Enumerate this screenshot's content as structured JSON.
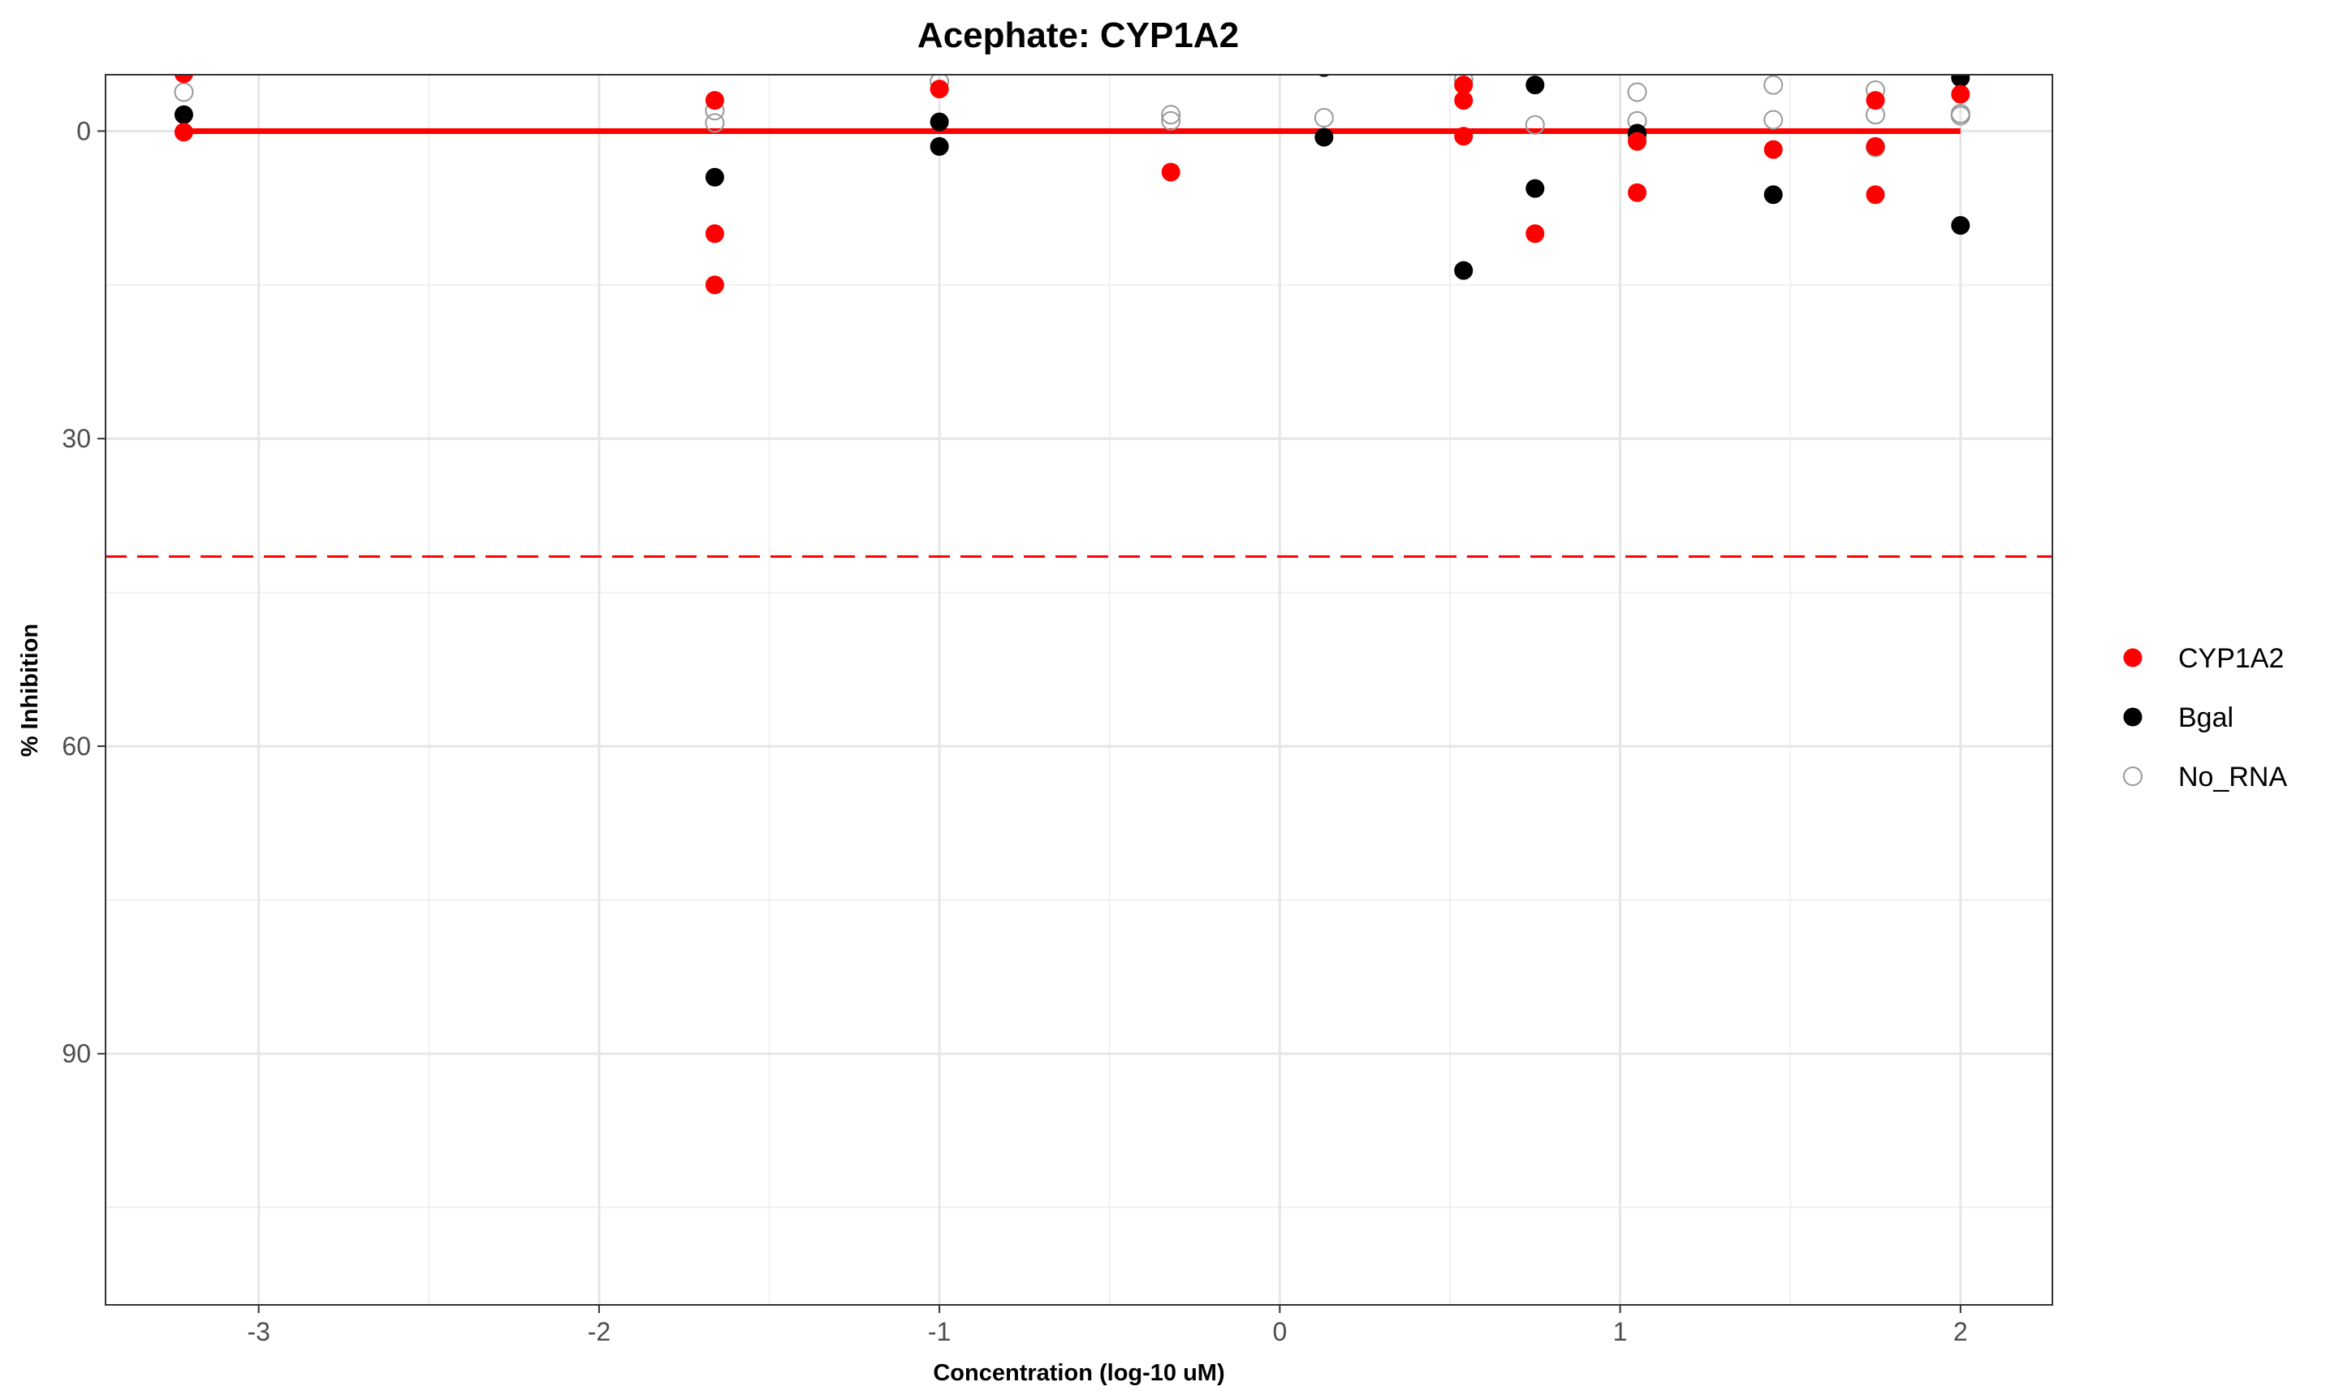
{
  "chart_data": {
    "type": "scatter",
    "title": "Acephate: CYP1A2",
    "xlabel": "Concentration (log-10 uM)",
    "ylabel": "% Inhibition",
    "xlim": [
      -3.45,
      2.27
    ],
    "ylim": [
      114.5,
      -5.5
    ],
    "y_reversed": true,
    "x_ticks": [
      -3,
      -2,
      -1,
      0,
      1,
      2
    ],
    "x_tick_labels": [
      "-3",
      "-2",
      "-1",
      "0",
      "1",
      "2"
    ],
    "y_ticks": [
      0,
      30,
      60,
      90
    ],
    "y_tick_labels": [
      "0",
      "30",
      "60",
      "90"
    ],
    "grid": true,
    "legend_position": "right",
    "series": [
      {
        "name": "CYP1A2",
        "color": "#ff0000",
        "marker": "filled-circle",
        "points": [
          {
            "x": -3.22,
            "y": -5.6
          },
          {
            "x": -3.22,
            "y": 0.1
          },
          {
            "x": -1.66,
            "y": -3.0
          },
          {
            "x": -1.66,
            "y": 10.0
          },
          {
            "x": -1.66,
            "y": 15.0
          },
          {
            "x": -1.0,
            "y": -4.1
          },
          {
            "x": -0.32,
            "y": 4.0
          },
          {
            "x": 0.54,
            "y": -4.5
          },
          {
            "x": 0.54,
            "y": -3.0
          },
          {
            "x": 0.54,
            "y": 0.5
          },
          {
            "x": 0.75,
            "y": 10.0
          },
          {
            "x": 1.05,
            "y": 1.0
          },
          {
            "x": 1.05,
            "y": 6.0
          },
          {
            "x": 1.45,
            "y": 1.8
          },
          {
            "x": 1.75,
            "y": -3.0
          },
          {
            "x": 1.75,
            "y": 1.5
          },
          {
            "x": 1.75,
            "y": 6.2
          },
          {
            "x": 2.0,
            "y": -3.6
          }
        ]
      },
      {
        "name": "Bgal",
        "color": "#000000",
        "marker": "filled-circle",
        "points": [
          {
            "x": -3.22,
            "y": -1.6
          },
          {
            "x": -1.66,
            "y": 4.5
          },
          {
            "x": -1.0,
            "y": -0.9
          },
          {
            "x": -1.0,
            "y": 1.5
          },
          {
            "x": 0.13,
            "y": 0.6
          },
          {
            "x": 0.13,
            "y": -6.2
          },
          {
            "x": 0.54,
            "y": 13.6
          },
          {
            "x": 0.75,
            "y": -4.5
          },
          {
            "x": 0.75,
            "y": 5.6
          },
          {
            "x": 1.05,
            "y": 0.2
          },
          {
            "x": 1.45,
            "y": 6.2
          },
          {
            "x": 2.0,
            "y": -5.2
          },
          {
            "x": 2.0,
            "y": 9.2
          }
        ]
      },
      {
        "name": "No_RNA",
        "color": "#999999",
        "marker": "open-circle",
        "points": [
          {
            "x": -3.22,
            "y": -3.8
          },
          {
            "x": -1.66,
            "y": -2.0
          },
          {
            "x": -1.66,
            "y": -0.8
          },
          {
            "x": -1.0,
            "y": -4.8
          },
          {
            "x": -0.32,
            "y": -1.6
          },
          {
            "x": -0.32,
            "y": -1.0
          },
          {
            "x": 0.13,
            "y": -1.3
          },
          {
            "x": 0.54,
            "y": -5.0
          },
          {
            "x": 0.75,
            "y": -0.6
          },
          {
            "x": 1.05,
            "y": -3.8
          },
          {
            "x": 1.05,
            "y": -1.0
          },
          {
            "x": 1.05,
            "y": 0.5
          },
          {
            "x": 1.45,
            "y": -4.5
          },
          {
            "x": 1.45,
            "y": -1.1
          },
          {
            "x": 1.75,
            "y": -4.0
          },
          {
            "x": 1.75,
            "y": -1.6
          },
          {
            "x": 1.75,
            "y": 1.6
          },
          {
            "x": 2.0,
            "y": -1.5
          },
          {
            "x": 2.0,
            "y": -1.7
          }
        ]
      }
    ],
    "fit_line": {
      "color": "#ff0000",
      "x": [
        -3.22,
        2.0
      ],
      "y": [
        0,
        0
      ]
    },
    "threshold_line": {
      "color": "#ff0000",
      "style": "dashed",
      "y": 41.5
    }
  }
}
